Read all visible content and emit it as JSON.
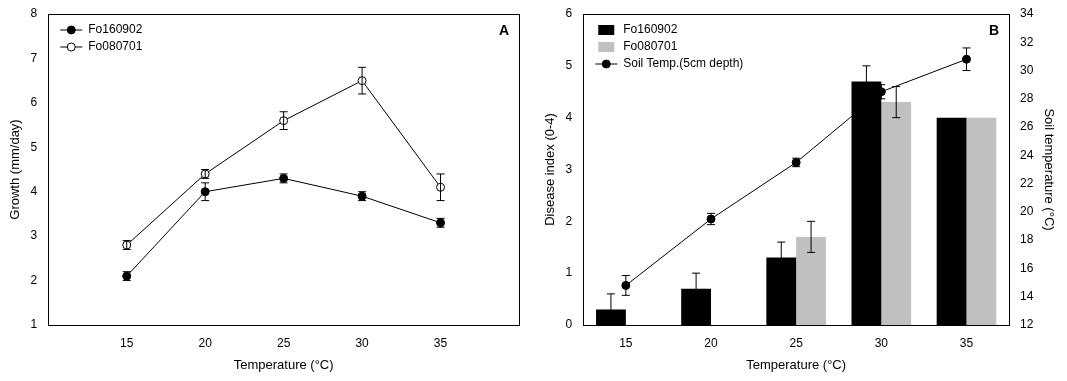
{
  "chart_data": [
    {
      "type": "line",
      "title": "A",
      "xlabel": "Temperature (°C)",
      "ylabel": "Growth (mm/day)",
      "x": [
        15,
        20,
        25,
        30,
        35
      ],
      "xlim": [
        10,
        40
      ],
      "xticks": [
        15,
        20,
        25,
        30,
        35
      ],
      "ylim": [
        1,
        8
      ],
      "yticks": [
        1,
        2,
        3,
        4,
        5,
        6,
        7,
        8
      ],
      "grid": false,
      "legend": "upper left",
      "series": [
        {
          "name": "Fo160902",
          "color": "#000000",
          "marker": "circle",
          "line_style": "solid",
          "values": [
            2.1,
            4.0,
            4.3,
            3.9,
            3.3
          ],
          "errors": [
            0.1,
            0.2,
            0.1,
            0.1,
            0.1
          ]
        },
        {
          "name": "Fo080701",
          "color": "#000000",
          "marker": "open_circle",
          "line_style": "solid",
          "values": [
            2.8,
            4.4,
            5.6,
            6.5,
            4.1
          ],
          "errors": [
            0.1,
            0.1,
            0.2,
            0.3,
            0.3
          ]
        }
      ]
    },
    {
      "type": "bar",
      "title": "B",
      "xlabel": "Temperature (°C)",
      "ylabel": "Disease index (0-4)",
      "y2label": "Soil temperature (°C)",
      "categories": [
        "15",
        "20",
        "25",
        "30",
        "35"
      ],
      "ylim": [
        0,
        6
      ],
      "yticks": [
        0,
        1,
        2,
        3,
        4,
        5,
        6
      ],
      "y2lim": [
        12,
        34
      ],
      "y2ticks": [
        12,
        14,
        16,
        18,
        20,
        22,
        24,
        26,
        28,
        30,
        32,
        34
      ],
      "grid": false,
      "legend": "upper left",
      "series": [
        {
          "name": "Fo160902",
          "color": "#000000",
          "values": [
            0.3,
            0.7,
            1.3,
            4.7,
            4.0
          ],
          "errors": [
            0.3,
            0.3,
            0.3,
            0.3,
            null
          ]
        },
        {
          "name": "Fo080701",
          "color": "#c0c0c0",
          "values": [
            null,
            null,
            1.7,
            4.3,
            4.0
          ],
          "errors": [
            null,
            null,
            0.3,
            0.3,
            null
          ]
        },
        {
          "name": "Soil Temp.(5cm depth)",
          "color": "#000000",
          "type": "line",
          "axis": "y2",
          "marker": "circle",
          "line_style": "solid",
          "values": [
            14.8,
            19.5,
            23.5,
            28.5,
            30.8
          ],
          "errors": [
            0.7,
            0.4,
            0.3,
            0.5,
            0.8
          ]
        }
      ]
    }
  ]
}
